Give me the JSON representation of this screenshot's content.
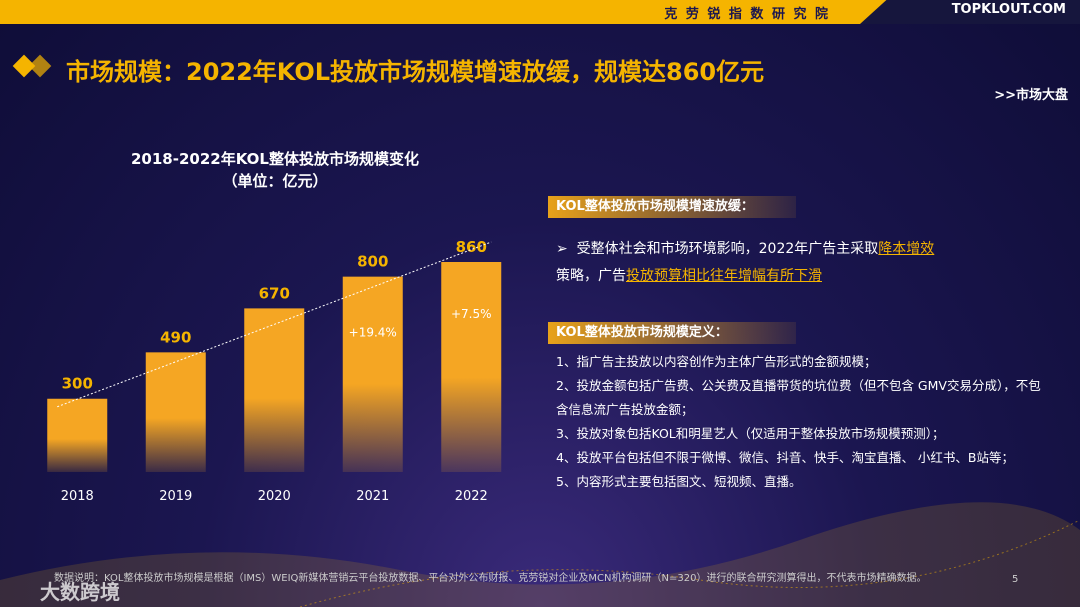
{
  "header": {
    "org": "克 劳 锐 指 数 研 究 院",
    "logo": "TOPKLOUT.COM"
  },
  "title": "市场规模：2022年KOL投放市场规模增速放缓，规模达860亿元",
  "section_link": ">>市场大盘",
  "chart_data": {
    "type": "bar",
    "title": "2018-2022年KOL整体投放市场规模变化",
    "subtitle": "（单位：亿元）",
    "categories": [
      "2018",
      "2019",
      "2020",
      "2021",
      "2022"
    ],
    "values": [
      300,
      490,
      670,
      800,
      860
    ],
    "color": "#f5a623",
    "annotations": [
      "+19.4%",
      "+7.5%"
    ]
  },
  "panel1": {
    "heading": "KOL整体投放市场规模增速放缓：",
    "segments": [
      "受整体社会和市场环境影响，2022年广告主采取",
      "降本增效",
      "策略，广告",
      "投放预算相比往年增幅有所下滑"
    ]
  },
  "panel2": {
    "heading": "KOL整体投放市场规模定义：",
    "items": [
      "1、指广告主投放以内容创作为主体广告形式的金额规模；",
      "2、投放金额包括广告费、公关费及直播带货的坑位费（但不包含 GMV交易分成），不包含信息流广告投放金额；",
      "3、投放对象包括KOL和明星艺人（仅适用于整体投放市场规模预测）；",
      "4、投放平台包括但不限于微博、微信、抖音、快手、淘宝直播、 小红书、B站等；",
      "5、内容形式主要包括图文、短视频、直播。"
    ]
  },
  "footnote": "数据说明：KOL整体投放市场规模是根据（IMS）WEIQ新媒体营销云平台投放数据、平台对外公布财报、克劳锐对企业及MCN机构调研（N=320）进行的联合研究测算得出，不代表市场精确数据。",
  "page_number": "5",
  "watermark": "大数跨境"
}
